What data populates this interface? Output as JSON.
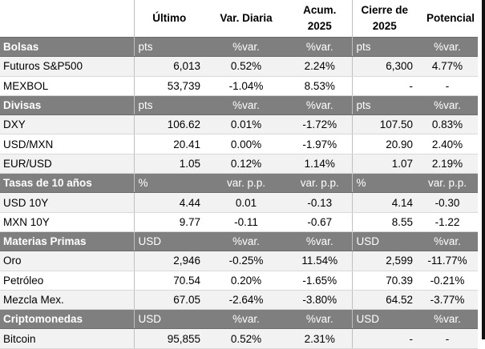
{
  "headers": {
    "name": "",
    "ultimo": "Último",
    "var_diaria": "Var. Diaria",
    "acum": "Acum. 2025",
    "cierre": "Cierre de 2025",
    "potencial": "Potencial"
  },
  "colors": {
    "section_bg": "#7f7f7f",
    "positive": "#1f9a3a",
    "negative": "#e01f1f"
  },
  "sections": [
    {
      "title": "Bolsas",
      "units": [
        "pts",
        "%var.",
        "%var.",
        "pts",
        "%var."
      ],
      "rows": [
        {
          "name": "Futuros S&P500",
          "ultimo": "6,013",
          "var": "0.52%",
          "var_sign": "pos",
          "acum": "2.24%",
          "acum_sign": "pos",
          "cierre": "6,300",
          "pot": "4.77%",
          "pot_sign": "pos"
        },
        {
          "name": "MEXBOL",
          "ultimo": "53,739",
          "var": "-1.04%",
          "var_sign": "neg",
          "acum": "8.53%",
          "acum_sign": "pos",
          "cierre": "-",
          "pot": "-",
          "pot_sign": "neu"
        }
      ]
    },
    {
      "title": "Divisas",
      "units": [
        "pts",
        "%var.",
        "%var.",
        "pts",
        "%var."
      ],
      "rows": [
        {
          "name": "DXY",
          "ultimo": "106.62",
          "var": "0.01%",
          "var_sign": "pos",
          "acum": "-1.72%",
          "acum_sign": "neg",
          "cierre": "107.50",
          "pot": "0.83%",
          "pot_sign": "pos"
        },
        {
          "name": "USD/MXN",
          "ultimo": "20.41",
          "var": "0.00%",
          "var_sign": "pos",
          "acum": "-1.97%",
          "acum_sign": "pos",
          "cierre": "20.90",
          "pot": "2.40%",
          "pot_sign": "neg"
        },
        {
          "name": "EUR/USD",
          "ultimo": "1.05",
          "var": "0.12%",
          "var_sign": "pos",
          "acum": "1.14%",
          "acum_sign": "pos",
          "cierre": "1.07",
          "pot": "2.19%",
          "pot_sign": "pos"
        }
      ]
    },
    {
      "title": "Tasas de 10 años",
      "units": [
        "%",
        "var. p.p.",
        "var. p.p.",
        "%",
        "var. p.p."
      ],
      "rows": [
        {
          "name": "USD 10Y",
          "ultimo": "4.44",
          "var": "0.01",
          "var_sign": "neg",
          "acum": "-0.13",
          "acum_sign": "pos",
          "cierre": "4.14",
          "pot": "-0.30",
          "pot_sign": "pos"
        },
        {
          "name": "MXN 10Y",
          "ultimo": "9.77",
          "var": "-0.11",
          "var_sign": "pos",
          "acum": "-0.67",
          "acum_sign": "pos",
          "cierre": "8.55",
          "pot": "-1.22",
          "pot_sign": "pos"
        }
      ]
    },
    {
      "title": "Materias Primas",
      "units": [
        "USD",
        "%var.",
        "%var.",
        "USD",
        "%var."
      ],
      "rows": [
        {
          "name": "Oro",
          "ultimo": "2,946",
          "var": "-0.25%",
          "var_sign": "neg",
          "acum": "11.54%",
          "acum_sign": "pos",
          "cierre": "2,599",
          "pot": "-11.77%",
          "pot_sign": "neg"
        },
        {
          "name": "Petróleo",
          "ultimo": "70.54",
          "var": "0.20%",
          "var_sign": "pos",
          "acum": "-1.65%",
          "acum_sign": "neg",
          "cierre": "70.39",
          "pot": "-0.21%",
          "pot_sign": "neg"
        },
        {
          "name": "Mezcla Mex.",
          "ultimo": "67.05",
          "var": "-2.64%",
          "var_sign": "neg",
          "acum": "-3.80%",
          "acum_sign": "neg",
          "cierre": "64.52",
          "pot": "-3.77%",
          "pot_sign": "neg"
        }
      ]
    },
    {
      "title": "Criptomonedas",
      "units": [
        "USD",
        "%var.",
        "%var.",
        "USD",
        "%var."
      ],
      "rows": [
        {
          "name": "Bitcoin",
          "ultimo": "95,855",
          "var": "0.52%",
          "var_sign": "pos",
          "acum": "2.31%",
          "acum_sign": "pos",
          "cierre": "-",
          "pot": "-",
          "pot_sign": "neu"
        }
      ]
    }
  ]
}
